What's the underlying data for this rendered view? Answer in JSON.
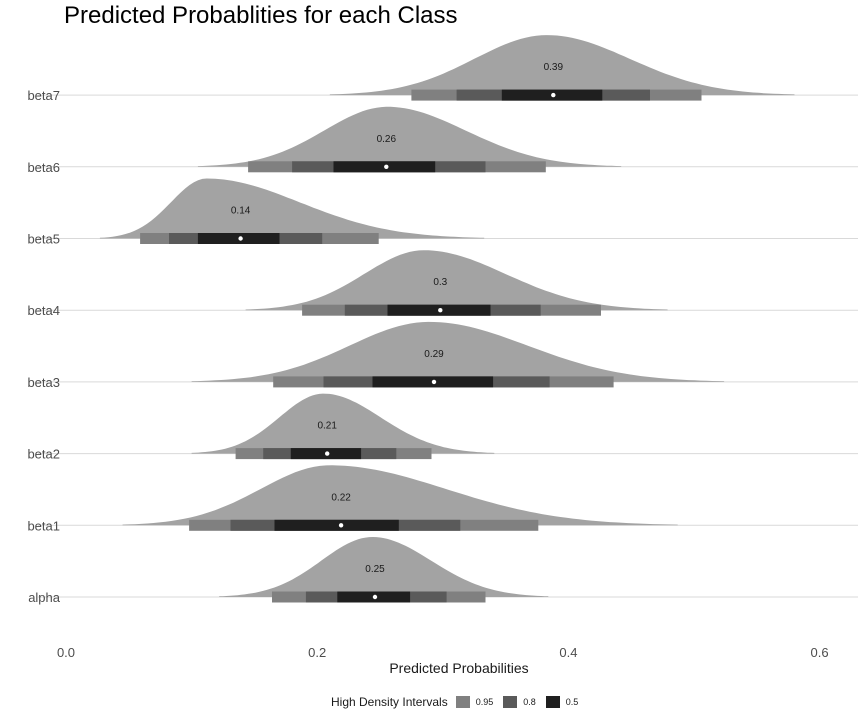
{
  "chart_data": {
    "type": "halfeye",
    "title": "Predicted Probablities for each Class",
    "xlabel": "Predicted Probabilities",
    "ylabel": "",
    "xlim": [
      0,
      0.63
    ],
    "xticks": [
      0.0,
      0.2,
      0.4,
      0.6
    ],
    "xtick_labels": [
      "0.0",
      "0.2",
      "0.4",
      "0.6"
    ],
    "grid": "horizontal",
    "legend": {
      "position": "bottom",
      "title": "High Density Intervals",
      "items": [
        {
          "label": "0.95",
          "color": "#808080"
        },
        {
          "label": "0.8",
          "color": "#5a5a5a"
        },
        {
          "label": "0.5",
          "color": "#1f1f1f"
        }
      ]
    },
    "colors": {
      "density": "#a3a3a3",
      "point": "#ffffff",
      "grid": "#d9d9d9"
    },
    "categories": [
      "alpha",
      "beta1",
      "beta2",
      "beta3",
      "beta4",
      "beta5",
      "beta6",
      "beta7"
    ],
    "series": [
      {
        "category": "alpha",
        "median": 0.246,
        "label": "0.25",
        "peak": 0.244,
        "tails": [
          0.122,
          0.384
        ],
        "hdi95": [
          0.164,
          0.334
        ],
        "hdi80": [
          0.191,
          0.303
        ],
        "hdi50": [
          0.216,
          0.274
        ]
      },
      {
        "category": "beta1",
        "median": 0.219,
        "label": "0.22",
        "peak": 0.21,
        "tails": [
          0.045,
          0.487
        ],
        "hdi95": [
          0.098,
          0.376
        ],
        "hdi80": [
          0.131,
          0.314
        ],
        "hdi50": [
          0.166,
          0.265
        ]
      },
      {
        "category": "beta2",
        "median": 0.208,
        "label": "0.21",
        "peak": 0.205,
        "tails": [
          0.1,
          0.341
        ],
        "hdi95": [
          0.135,
          0.291
        ],
        "hdi80": [
          0.157,
          0.263
        ],
        "hdi50": [
          0.179,
          0.235
        ]
      },
      {
        "category": "beta3",
        "median": 0.293,
        "label": "0.29",
        "peak": 0.289,
        "tails": [
          0.1,
          0.524
        ],
        "hdi95": [
          0.165,
          0.436
        ],
        "hdi80": [
          0.205,
          0.385
        ],
        "hdi50": [
          0.244,
          0.34
        ]
      },
      {
        "category": "beta4",
        "median": 0.298,
        "label": "0.3",
        "peak": 0.285,
        "tails": [
          0.143,
          0.479
        ],
        "hdi95": [
          0.188,
          0.426
        ],
        "hdi80": [
          0.222,
          0.378
        ],
        "hdi50": [
          0.256,
          0.338
        ]
      },
      {
        "category": "beta5",
        "median": 0.139,
        "label": "0.14",
        "peak": 0.112,
        "tails": [
          0.027,
          0.333
        ],
        "hdi95": [
          0.059,
          0.249
        ],
        "hdi80": [
          0.082,
          0.204
        ],
        "hdi50": [
          0.105,
          0.17
        ]
      },
      {
        "category": "beta6",
        "median": 0.255,
        "label": "0.26",
        "peak": 0.256,
        "tails": [
          0.105,
          0.442
        ],
        "hdi95": [
          0.145,
          0.382
        ],
        "hdi80": [
          0.18,
          0.334
        ],
        "hdi50": [
          0.213,
          0.294
        ]
      },
      {
        "category": "beta7",
        "median": 0.388,
        "label": "0.39",
        "peak": 0.383,
        "tails": [
          0.21,
          0.58
        ],
        "hdi95": [
          0.275,
          0.506
        ],
        "hdi80": [
          0.311,
          0.465
        ],
        "hdi50": [
          0.347,
          0.427
        ]
      }
    ]
  }
}
